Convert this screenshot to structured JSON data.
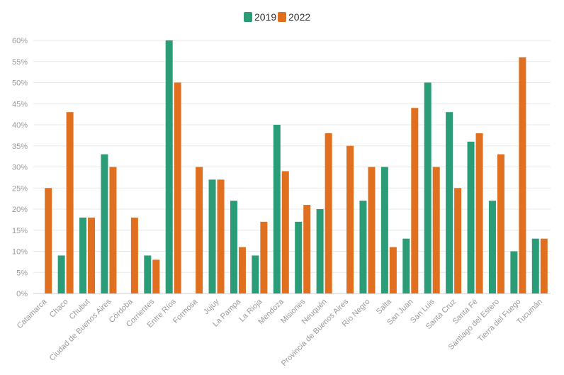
{
  "chart_data": {
    "type": "bar",
    "title": "",
    "xlabel": "",
    "ylabel": "",
    "ylim": [
      0,
      60
    ],
    "yticks": [
      0,
      5,
      10,
      15,
      20,
      25,
      30,
      35,
      40,
      45,
      50,
      55,
      60
    ],
    "ytick_format": "{v}%",
    "grid": true,
    "legend_position": "top-center",
    "categories": [
      "Catamarca",
      "Chaco",
      "Chubut",
      "Ciudad de Buenos Aires",
      "Córdoba",
      "Corrientes",
      "Entre Ríos",
      "Formosa",
      "Jujuy",
      "La Pampa",
      "La Rioja",
      "Mendoza",
      "Misiones",
      "Neuquén",
      "Provincia de Buenos Aires",
      "Río Negro",
      "Salta",
      "San Juan",
      "San Luis",
      "Santa Cruz",
      "Santa Fé",
      "Santiago del Estero",
      "Tierra del Fuego",
      "Tucumán"
    ],
    "series": [
      {
        "name": "2019",
        "color": "#2a9d78",
        "values": [
          0,
          9,
          18,
          33,
          0,
          9,
          60,
          0,
          27,
          22,
          9,
          40,
          17,
          20,
          0,
          22,
          30,
          13,
          50,
          43,
          36,
          22,
          10,
          13
        ]
      },
      {
        "name": "2022",
        "color": "#e07020",
        "values": [
          25,
          43,
          18,
          30,
          18,
          8,
          50,
          30,
          27,
          11,
          17,
          29,
          21,
          38,
          35,
          30,
          11,
          44,
          30,
          25,
          38,
          33,
          56,
          13
        ]
      }
    ]
  }
}
